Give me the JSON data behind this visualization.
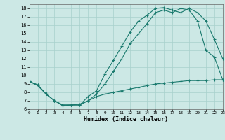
{
  "xlabel": "Humidex (Indice chaleur)",
  "bg_color": "#cce8e5",
  "line_color": "#1a7a6e",
  "grid_color": "#a8d0cc",
  "xlim": [
    0,
    23
  ],
  "ylim": [
    6,
    18.5
  ],
  "xticks": [
    0,
    1,
    2,
    3,
    4,
    5,
    6,
    7,
    8,
    9,
    10,
    11,
    12,
    13,
    14,
    15,
    16,
    17,
    18,
    19,
    20,
    21,
    22,
    23
  ],
  "yticks": [
    6,
    7,
    8,
    9,
    10,
    11,
    12,
    13,
    14,
    15,
    16,
    17,
    18
  ],
  "curve1_x": [
    0,
    1,
    2,
    3,
    4,
    5,
    6,
    7,
    8,
    9,
    10,
    11,
    12,
    13,
    14,
    15,
    16,
    17,
    18,
    19,
    20,
    21,
    22,
    23
  ],
  "curve1_y": [
    9.3,
    8.9,
    7.8,
    7.0,
    6.5,
    6.5,
    6.5,
    7.5,
    8.2,
    10.2,
    11.8,
    13.5,
    15.2,
    16.5,
    17.2,
    18.0,
    18.1,
    17.8,
    17.5,
    18.0,
    17.5,
    16.5,
    14.3,
    12.0
  ],
  "curve2_x": [
    0,
    1,
    2,
    3,
    4,
    5,
    6,
    7,
    8,
    9,
    10,
    11,
    12,
    13,
    14,
    15,
    16,
    17,
    18,
    19,
    20,
    21,
    22,
    23
  ],
  "curve2_y": [
    9.3,
    8.9,
    7.8,
    7.0,
    6.4,
    6.5,
    6.5,
    7.0,
    7.8,
    9.0,
    10.5,
    12.0,
    13.8,
    15.0,
    16.2,
    17.5,
    17.8,
    17.5,
    18.0,
    17.8,
    16.5,
    13.0,
    12.2,
    9.5
  ],
  "curve3_x": [
    0,
    1,
    2,
    3,
    4,
    5,
    6,
    7,
    8,
    9,
    10,
    11,
    12,
    13,
    14,
    15,
    16,
    17,
    18,
    19,
    20,
    21,
    22,
    23
  ],
  "curve3_y": [
    9.3,
    8.8,
    7.8,
    7.0,
    6.5,
    6.5,
    6.6,
    7.0,
    7.5,
    7.8,
    8.0,
    8.2,
    8.4,
    8.6,
    8.8,
    9.0,
    9.1,
    9.2,
    9.3,
    9.4,
    9.4,
    9.4,
    9.5,
    9.5
  ]
}
